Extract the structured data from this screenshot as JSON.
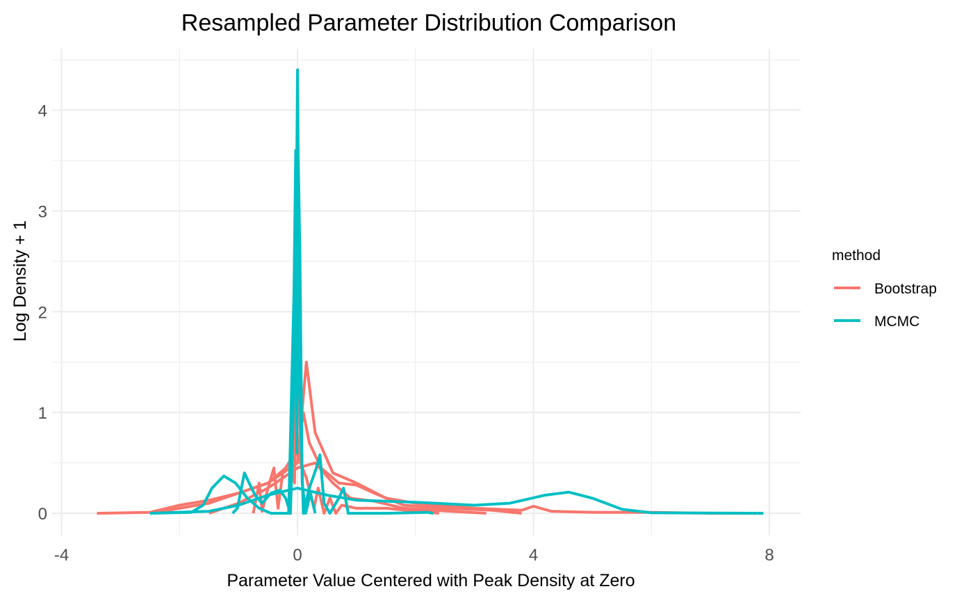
{
  "chart_data": {
    "type": "line",
    "title": "Resampled Parameter Distribution Comparison",
    "xlabel": "Parameter Value Centered with Peak Density at Zero",
    "ylabel": "Log Density + 1",
    "xlim": [
      -4.16,
      8.53
    ],
    "ylim": [
      -0.22,
      4.61
    ],
    "x_ticks": [
      -4,
      0,
      4,
      8
    ],
    "x_tick_labels": [
      "-4",
      "0",
      "4",
      "8"
    ],
    "y_ticks": [
      0,
      1,
      2,
      3,
      4
    ],
    "y_tick_labels": [
      "0",
      "1",
      "2",
      "3",
      "4"
    ],
    "grid": true,
    "legend": {
      "title": "method",
      "position": "right",
      "entries": [
        {
          "label": "Bootstrap",
          "color": "#F8766D"
        },
        {
          "label": "MCMC",
          "color": "#00BFC4"
        }
      ]
    },
    "series": [
      {
        "name": "Bootstrap",
        "points": [
          [
            -3.4,
            0
          ],
          [
            -2.5,
            0.01
          ],
          [
            -2,
            0.08
          ],
          [
            -1.5,
            0.13
          ],
          [
            -1,
            0.2
          ],
          [
            -0.5,
            0.3
          ],
          [
            -0.2,
            0.45
          ],
          [
            0,
            0.6
          ],
          [
            0.1,
            1.0
          ],
          [
            0.2,
            0.7
          ],
          [
            0.4,
            0.45
          ],
          [
            0.7,
            0.3
          ],
          [
            1,
            0.28
          ],
          [
            1.3,
            0.2
          ],
          [
            1.8,
            0.08
          ],
          [
            2.5,
            0.05
          ],
          [
            3.3,
            0.03
          ],
          [
            3.8,
            0
          ]
        ]
      },
      {
        "name": "Bootstrap",
        "points": [
          [
            -2.5,
            0
          ],
          [
            -1.5,
            0.1
          ],
          [
            -0.5,
            0.3
          ],
          [
            0,
            0.5
          ],
          [
            0.15,
            1.5
          ],
          [
            0.3,
            0.8
          ],
          [
            0.6,
            0.4
          ],
          [
            1,
            0.3
          ],
          [
            1.5,
            0.15
          ],
          [
            2,
            0.1
          ],
          [
            3,
            0.05
          ],
          [
            3.8,
            0.03
          ],
          [
            4,
            0.07
          ],
          [
            4.3,
            0.02
          ],
          [
            5,
            0.01
          ],
          [
            6,
            0.01
          ],
          [
            7,
            0
          ],
          [
            7.9,
            0
          ]
        ]
      },
      {
        "name": "Bootstrap",
        "points": [
          [
            -0.75,
            0
          ],
          [
            -0.65,
            0.3
          ],
          [
            -0.6,
            0.02
          ],
          [
            -0.5,
            0.25
          ],
          [
            -0.4,
            0.45
          ],
          [
            -0.33,
            0.05
          ],
          [
            -0.25,
            0.4
          ],
          [
            -0.15,
            0.5
          ],
          [
            -0.05,
            0.3
          ],
          [
            0,
            2.5
          ],
          [
            0.05,
            0.5
          ],
          [
            0.15,
            0.35
          ],
          [
            0.28,
            0.05
          ],
          [
            0.35,
            0.25
          ],
          [
            0.45,
            0
          ],
          [
            0.55,
            0.15
          ],
          [
            0.65,
            0
          ],
          [
            0.75,
            0.08
          ],
          [
            1,
            0.05
          ],
          [
            1.5,
            0.05
          ],
          [
            2.4,
            0
          ]
        ]
      },
      {
        "name": "Bootstrap",
        "points": [
          [
            -1.5,
            0
          ],
          [
            -1,
            0.1
          ],
          [
            -0.5,
            0.25
          ],
          [
            0,
            0.45
          ],
          [
            0.3,
            0.5
          ],
          [
            0.6,
            0.3
          ],
          [
            0.9,
            0.15
          ],
          [
            1.3,
            0.12
          ],
          [
            1.8,
            0.05
          ],
          [
            2.6,
            0.02
          ],
          [
            3.2,
            0
          ]
        ]
      },
      {
        "name": "MCMC",
        "points": [
          [
            -2.5,
            0
          ],
          [
            -1.8,
            0.01
          ],
          [
            -1.6,
            0.08
          ],
          [
            -1.45,
            0.25
          ],
          [
            -1.25,
            0.37
          ],
          [
            -1.05,
            0.3
          ],
          [
            -0.85,
            0.15
          ],
          [
            -0.65,
            0.05
          ],
          [
            -0.45,
            0
          ],
          [
            -0.1,
            0
          ]
        ]
      },
      {
        "name": "MCMC",
        "points": [
          [
            -2.5,
            0
          ],
          [
            -1.5,
            0.02
          ],
          [
            -1,
            0.08
          ],
          [
            -0.5,
            0.18
          ],
          [
            0,
            0.25
          ],
          [
            0.5,
            0.18
          ],
          [
            1,
            0.13
          ],
          [
            2,
            0.11
          ],
          [
            3,
            0.08
          ],
          [
            3.6,
            0.1
          ],
          [
            4.2,
            0.18
          ],
          [
            4.6,
            0.21
          ],
          [
            5,
            0.15
          ],
          [
            5.5,
            0.04
          ],
          [
            6,
            0.005
          ],
          [
            7.9,
            0
          ]
        ]
      },
      {
        "name": "MCMC",
        "points": [
          [
            -1.1,
            0
          ],
          [
            -1.02,
            0.05
          ],
          [
            -0.9,
            0.4
          ],
          [
            -0.82,
            0.3
          ],
          [
            -0.72,
            0.18
          ],
          [
            -0.6,
            0.1
          ],
          [
            -0.45,
            0.2
          ],
          [
            -0.3,
            0.23
          ],
          [
            -0.2,
            0.15
          ],
          [
            -0.12,
            0
          ],
          [
            -0.04,
            1.6
          ],
          [
            0,
            4.4
          ],
          [
            0.04,
            1.2
          ],
          [
            0.1,
            0
          ],
          [
            0.2,
            0.25
          ],
          [
            0.32,
            0.45
          ],
          [
            0.38,
            0.58
          ],
          [
            0.45,
            0.1
          ],
          [
            0.55,
            0
          ],
          [
            0.7,
            0.15
          ],
          [
            0.78,
            0.25
          ],
          [
            0.86,
            0
          ],
          [
            1.5,
            0
          ],
          [
            2.2,
            0.01
          ],
          [
            2.3,
            0
          ]
        ]
      },
      {
        "name": "MCMC",
        "points": [
          [
            -0.15,
            0
          ],
          [
            -0.06,
            2.2
          ],
          [
            -0.03,
            3.6
          ],
          [
            -0.01,
            0.6
          ],
          [
            0.01,
            3.6
          ],
          [
            0.04,
            2.6
          ],
          [
            0.08,
            0.3
          ],
          [
            0.14,
            0
          ],
          [
            0.22,
            0.2
          ],
          [
            0.3,
            0
          ]
        ]
      }
    ]
  }
}
